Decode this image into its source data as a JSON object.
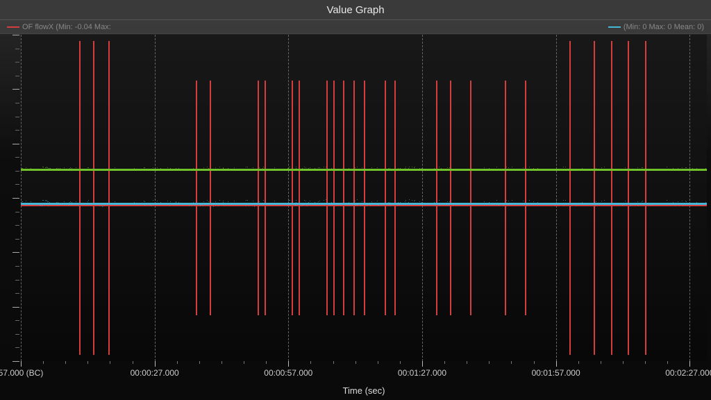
{
  "title": "Value Graph",
  "legend": {
    "series1": {
      "label": "OF flowX (Min: -0.04 Max:",
      "color": "#d43e3e"
    },
    "series2": {
      "label": "(Min: 0 Max: 0 Mean: 0)",
      "color": "#45b8d8"
    }
  },
  "chart": {
    "type": "line",
    "background_color": "#0d0d0d",
    "grid_color": "#666666",
    "zero_line_color": "#888888",
    "x_label": "Time (sec)",
    "x_ticks": [
      {
        "pos": 0.0,
        "label": "57.000 (BC)"
      },
      {
        "pos": 0.195,
        "label": "00:00:27.000"
      },
      {
        "pos": 0.39,
        "label": "00:00:57.000"
      },
      {
        "pos": 0.585,
        "label": "00:01:27.000"
      },
      {
        "pos": 0.78,
        "label": "00:01:57.000"
      },
      {
        "pos": 0.975,
        "label": "00:02:27.000"
      }
    ],
    "red_spikes": {
      "color": "#d43e3e",
      "full_x": [
        0.085,
        0.105,
        0.128,
        0.8,
        0.835,
        0.86,
        0.885,
        0.91
      ],
      "x": [
        0.255,
        0.275,
        0.345,
        0.355,
        0.395,
        0.405,
        0.445,
        0.455,
        0.47,
        0.485,
        0.5,
        0.53,
        0.545,
        0.605,
        0.625,
        0.655,
        0.705,
        0.735
      ]
    },
    "green_trace": {
      "color": "#6fc22a",
      "y": 0.41,
      "noise_amp": 0.006
    },
    "blue_trace": {
      "color": "#45b8d8",
      "y": 0.515,
      "noise_amp": 0.01
    },
    "red_trace": {
      "color": "#d43e3e",
      "y": 0.52,
      "noise_amp": 0.003
    },
    "zero_y": 0.52
  }
}
